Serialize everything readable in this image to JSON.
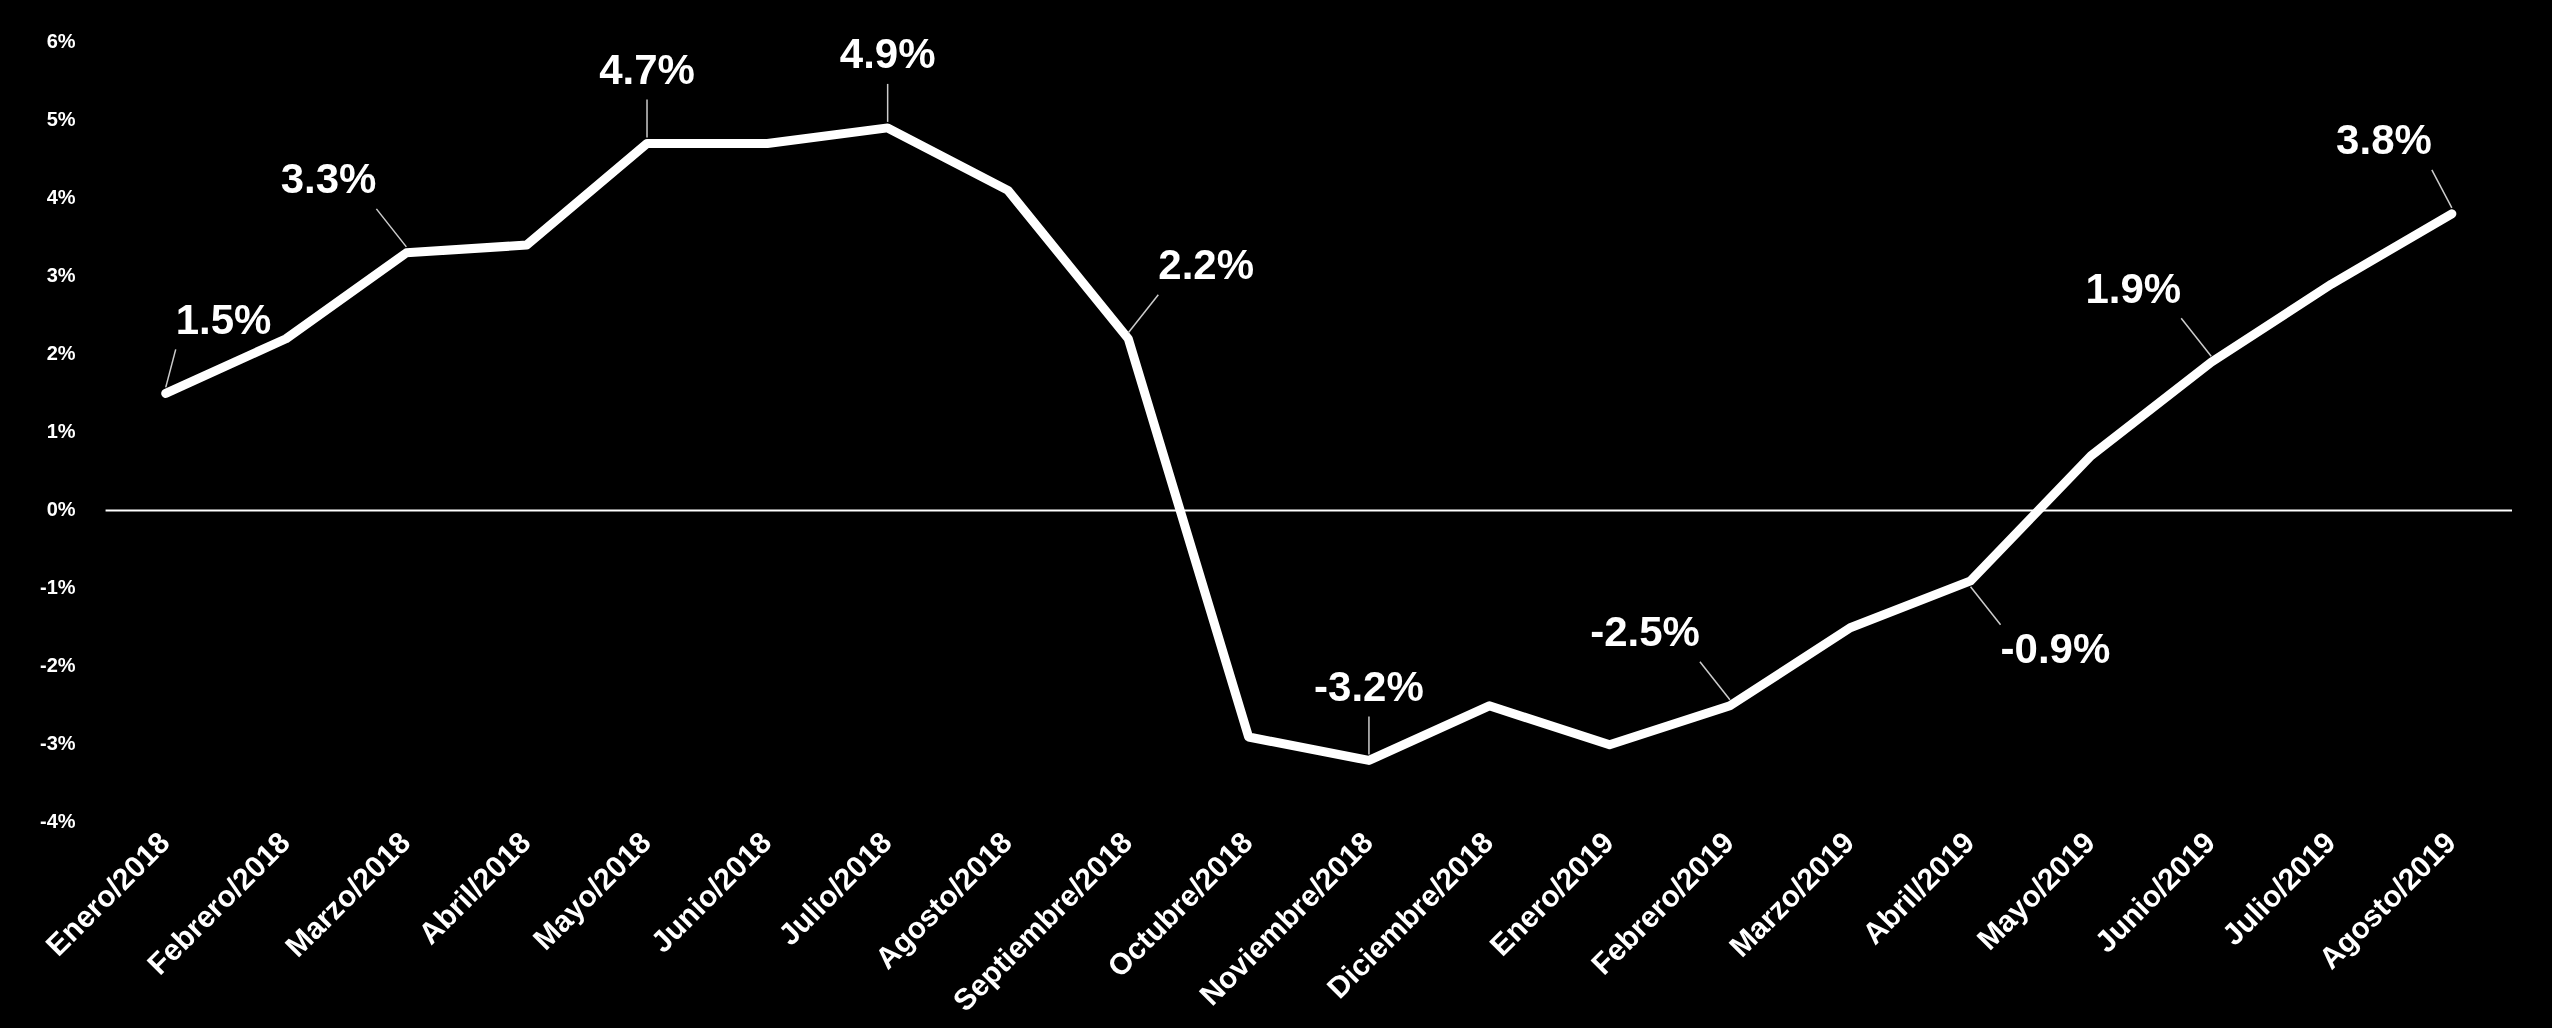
{
  "chart_data": {
    "type": "line",
    "categories": [
      "Enero/2018",
      "Febrero/2018",
      "Marzo/2018",
      "Abril/2018",
      "Mayo/2018",
      "Junio/2018",
      "Julio/2018",
      "Agosto/2018",
      "Septiembre/2018",
      "Octubre/2018",
      "Noviembre/2018",
      "Diciembre/2018",
      "Enero/2019",
      "Febrero/2019",
      "Marzo/2019",
      "Abril/2019",
      "Mayo/2019",
      "Junio/2019",
      "Julio/2019",
      "Agosto/2019"
    ],
    "series": [
      {
        "color": "#ffffff",
        "values": [
          1.5,
          2.2,
          3.3,
          3.4,
          4.7,
          4.7,
          4.9,
          4.1,
          2.2,
          -2.9,
          -3.2,
          -2.5,
          -3.0,
          -2.5,
          -1.5,
          -0.9,
          0.7,
          1.9,
          2.9,
          3.8
        ],
        "value_labels": [
          "1.5%",
          null,
          "3.3%",
          null,
          "4.7%",
          null,
          "4.9%",
          null,
          "2.2%",
          null,
          "-3.2%",
          null,
          null,
          "-2.5%",
          null,
          "-0.9%",
          null,
          "1.9%",
          null,
          "3.8%"
        ]
      }
    ],
    "ylim": [
      -4,
      6
    ],
    "yticks": [
      {
        "value": -4,
        "label": "-4%"
      },
      {
        "value": -3,
        "label": "-3%"
      },
      {
        "value": -2,
        "label": "-2%"
      },
      {
        "value": -1,
        "label": "-1%"
      },
      {
        "value": 0,
        "label": "0%"
      },
      {
        "value": 1,
        "label": "1%"
      },
      {
        "value": 2,
        "label": "2%"
      },
      {
        "value": 3,
        "label": "3%"
      },
      {
        "value": 4,
        "label": "4%"
      },
      {
        "value": 5,
        "label": "5%"
      },
      {
        "value": 6,
        "label": "6%"
      }
    ],
    "ref_lines": [
      {
        "axis": "y",
        "value": 0,
        "color": "#ffffff"
      }
    ],
    "grid": false,
    "legend": false,
    "marker": "none",
    "line_style": "solid"
  }
}
